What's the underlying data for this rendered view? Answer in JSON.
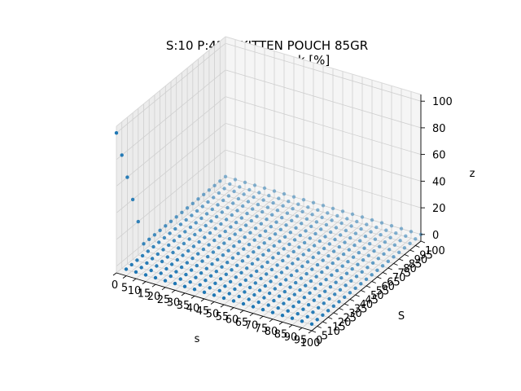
{
  "chart_data": {
    "type": "scatter",
    "projection": "3d",
    "title": "S:10 P:428: KITTEN POUCH 85GR",
    "subtitle": "Rotura de stock [%]",
    "xlabel": "s",
    "ylabel": "S",
    "zlabel": "z",
    "x_ticks": [
      "0",
      "5",
      "10",
      "15",
      "20",
      "25",
      "30",
      "35",
      "40",
      "45",
      "50",
      "55",
      "60",
      "65",
      "70",
      "75",
      "80",
      "85",
      "90",
      "95",
      "100"
    ],
    "y_ticks": [
      "0",
      "5",
      "10",
      "15",
      "20",
      "25",
      "30",
      "35",
      "40",
      "45",
      "50",
      "55",
      "60",
      "65",
      "70",
      "75",
      "80",
      "85",
      "90",
      "95",
      "100"
    ],
    "z_ticks": [
      "0",
      "20",
      "40",
      "60",
      "80",
      "100"
    ],
    "xlim": [
      0,
      100
    ],
    "ylim": [
      0,
      100
    ],
    "zlim": [
      -5,
      105
    ],
    "grid": true,
    "point_color": "#1f77b4",
    "grid_step": 5,
    "default_z": 0,
    "points": [
      {
        "x": 0,
        "y": 0,
        "z": 100
      },
      {
        "x": 0,
        "y": 5,
        "z": 80
      },
      {
        "x": 0,
        "y": 10,
        "z": 60
      },
      {
        "x": 0,
        "y": 15,
        "z": 40
      },
      {
        "x": 0,
        "y": 20,
        "z": 20
      }
    ]
  }
}
